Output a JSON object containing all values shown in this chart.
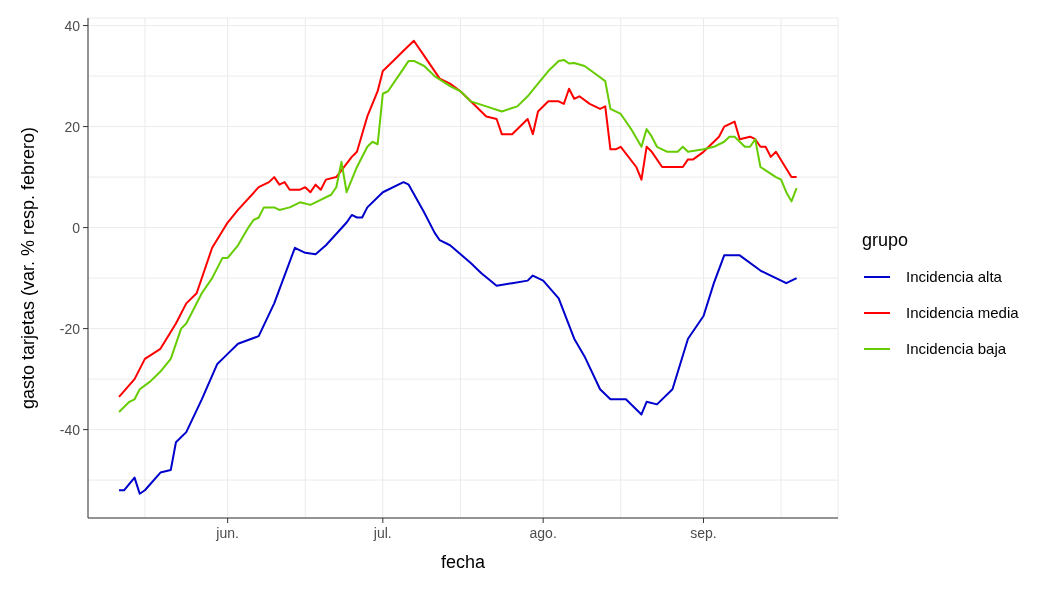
{
  "chart_data": {
    "type": "line",
    "xlabel": "fecha",
    "ylabel": "gasto tarjetas (var. % resp. febrero)",
    "legend_title": "grupo",
    "legend": "right",
    "grid": true,
    "xlim": [
      "--05-05",
      "--09-27"
    ],
    "xticks": [
      {
        "value": "--05-16",
        "label": null
      },
      {
        "value": "--06-01",
        "label": "jun."
      },
      {
        "value": "--06-16",
        "label": null
      },
      {
        "value": "--07-01",
        "label": "jul."
      },
      {
        "value": "--07-16",
        "label": null
      },
      {
        "value": "--08-01",
        "label": "ago."
      },
      {
        "value": "--08-16",
        "label": null
      },
      {
        "value": "--09-01",
        "label": "sep."
      },
      {
        "value": "--09-16",
        "label": null
      }
    ],
    "ylim": [
      -57.5,
      41.5
    ],
    "yticks": [
      {
        "value": -50,
        "label": null
      },
      -40,
      {
        "value": -30,
        "label": null
      },
      -20,
      {
        "value": -10,
        "label": null
      },
      0,
      {
        "value": 10,
        "label": null
      },
      20,
      {
        "value": 30,
        "label": null
      },
      40
    ],
    "series": [
      {
        "name": "Incidencia alta",
        "color": "#0000cc",
        "x": [
          "--05-11",
          "--05-12",
          "--05-14",
          "--05-15",
          "--05-16",
          "--05-19",
          "--05-21",
          "--05-22",
          "--05-24",
          "--05-27",
          "--05-30",
          "--06-01",
          "--06-03",
          "--06-07",
          "--06-10",
          "--06-14",
          "--06-16",
          "--06-18",
          "--06-20",
          "--06-24",
          "--06-25",
          "--06-26",
          "--06-27",
          "--06-28",
          "--07-01",
          "--07-05",
          "--07-06",
          "--07-09",
          "--07-11",
          "--07-12",
          "--07-14",
          "--07-18",
          "--07-20",
          "--07-23",
          "--07-26",
          "--07-29",
          "--07-30",
          "--08-01",
          "--08-04",
          "--08-07",
          "--08-09",
          "--08-12",
          "--08-14",
          "--08-17",
          "--08-20",
          "--08-21",
          "--08-23",
          "--08-26",
          "--08-29",
          "--09-01",
          "--09-03",
          "--09-05",
          "--09-08",
          "--09-12",
          "--09-17",
          "--09-19"
        ],
        "values": [
          -52,
          -52,
          -49.5,
          -52.7,
          -52,
          -48.5,
          -48,
          -42.5,
          -40.5,
          -34,
          -27,
          -25,
          -23,
          -21.5,
          -15,
          -4,
          -5,
          -5.3,
          -3.5,
          1,
          2.5,
          2,
          2,
          4,
          7,
          9,
          8.5,
          3,
          -1,
          -2.5,
          -3.5,
          -7,
          -9,
          -11.5,
          -11,
          -10.5,
          -9.5,
          -10.5,
          -14,
          -22,
          -25.5,
          -32,
          -34,
          -34,
          -37,
          -34.5,
          -35,
          -32,
          -22,
          -17.5,
          -11,
          -5.5,
          -5.5,
          -8.5,
          -11,
          -10
        ]
      },
      {
        "name": "Incidencia media",
        "color": "#ff0000",
        "x": [
          "--05-11",
          "--05-14",
          "--05-16",
          "--05-19",
          "--05-22",
          "--05-24",
          "--05-26",
          "--05-29",
          "--06-01",
          "--06-03",
          "--06-07",
          "--06-09",
          "--06-10",
          "--06-11",
          "--06-12",
          "--06-13",
          "--06-15",
          "--06-16",
          "--06-17",
          "--06-18",
          "--06-19",
          "--06-20",
          "--06-22",
          "--06-25",
          "--06-26",
          "--06-28",
          "--06-30",
          "--07-01",
          "--07-03",
          "--07-05",
          "--07-07",
          "--07-09",
          "--07-12",
          "--07-14",
          "--07-16",
          "--07-18",
          "--07-21",
          "--07-23",
          "--07-24",
          "--07-26",
          "--07-29",
          "--07-30",
          "--07-31",
          "--08-02",
          "--08-04",
          "--08-05",
          "--08-06",
          "--08-07",
          "--08-08",
          "--08-10",
          "--08-12",
          "--08-13",
          "--08-14",
          "--08-15",
          "--08-16",
          "--08-19",
          "--08-20",
          "--08-21",
          "--08-22",
          "--08-24",
          "--08-26",
          "--08-28",
          "--08-29",
          "--08-30",
          "--09-01",
          "--09-04",
          "--09-05",
          "--09-07",
          "--09-08",
          "--09-10",
          "--09-11",
          "--09-12",
          "--09-13",
          "--09-14",
          "--09-15",
          "--09-18",
          "--09-19"
        ],
        "values": [
          -33.5,
          -30,
          -26,
          -24,
          -19,
          -15,
          -13,
          -4,
          1,
          3.5,
          8,
          9,
          10,
          8.5,
          9,
          7.5,
          7.5,
          8,
          7,
          8.5,
          7.5,
          9.5,
          10,
          14,
          15,
          22,
          27,
          31,
          33,
          35,
          37,
          34,
          29.5,
          28.5,
          27,
          25,
          22,
          21.5,
          18.5,
          18.5,
          21.5,
          18.5,
          23,
          25,
          25,
          24.5,
          27.5,
          25.5,
          26,
          24.5,
          23.5,
          24,
          15.5,
          15.5,
          16,
          12,
          9.5,
          16,
          15,
          12,
          12,
          12,
          13.5,
          13.5,
          15,
          18,
          20,
          21,
          17.5,
          18,
          17.5,
          16,
          16,
          14,
          15,
          10,
          10
        ]
      },
      {
        "name": "Incidencia baja",
        "color": "#66cc00",
        "x": [
          "--05-11",
          "--05-13",
          "--05-14",
          "--05-15",
          "--05-17",
          "--05-19",
          "--05-21",
          "--05-23",
          "--05-24",
          "--05-27",
          "--05-29",
          "--05-31",
          "--06-01",
          "--06-03",
          "--06-05",
          "--06-06",
          "--06-07",
          "--06-08",
          "--06-10",
          "--06-11",
          "--06-13",
          "--06-15",
          "--06-17",
          "--06-18",
          "--06-21",
          "--06-22",
          "--06-23",
          "--06-24",
          "--06-26",
          "--06-28",
          "--06-29",
          "--06-30",
          "--07-01",
          "--07-02",
          "--07-04",
          "--07-06",
          "--07-07",
          "--07-09",
          "--07-11",
          "--07-14",
          "--07-16",
          "--07-18",
          "--07-21",
          "--07-24",
          "--07-27",
          "--07-29",
          "--07-31",
          "--08-02",
          "--08-04",
          "--08-05",
          "--08-06",
          "--08-07",
          "--08-09",
          "--08-11",
          "--08-13",
          "--08-14",
          "--08-16",
          "--08-17",
          "--08-18",
          "--08-20",
          "--08-21",
          "--08-22",
          "--08-23",
          "--08-25",
          "--08-27",
          "--08-28",
          "--08-29",
          "--09-01",
          "--09-03",
          "--09-05",
          "--09-06",
          "--09-07",
          "--09-09",
          "--09-10",
          "--09-11",
          "--09-12",
          "--09-15",
          "--09-16",
          "--09-17",
          "--09-18",
          "--09-19"
        ],
        "values": [
          -36.5,
          -34.5,
          -34,
          -32,
          -30.5,
          -28.5,
          -26,
          -20,
          -19,
          -13,
          -10,
          -6,
          -6,
          -3.5,
          0,
          1.5,
          2,
          4,
          4,
          3.5,
          4,
          5,
          4.5,
          5,
          6.5,
          8,
          13,
          7,
          12,
          16,
          17,
          16.5,
          26.5,
          27,
          30,
          33,
          33,
          32,
          30,
          28,
          27,
          25,
          24,
          23,
          24,
          26,
          28.5,
          31,
          33,
          33.2,
          32.5,
          32.6,
          32,
          30.5,
          29,
          23.5,
          22.5,
          21,
          19.5,
          16,
          19.5,
          18,
          16,
          15,
          15,
          16,
          15,
          15.5,
          16,
          17,
          18,
          18,
          16,
          16,
          17.5,
          12,
          10,
          9.5,
          7,
          5.2,
          7.8
        ]
      }
    ]
  }
}
